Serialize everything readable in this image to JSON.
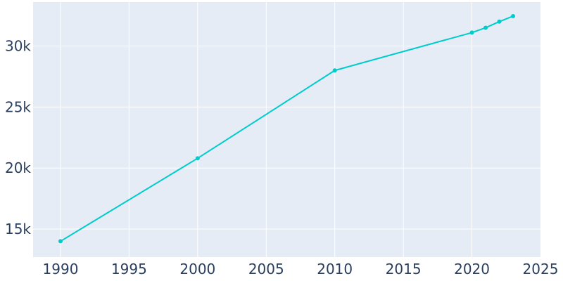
{
  "chart_data": {
    "type": "line",
    "x": [
      1990,
      2000,
      2010,
      2020,
      2021,
      2022,
      2023
    ],
    "series": [
      {
        "values": [
          14000,
          20800,
          28000,
          31100,
          31500,
          32000,
          32450
        ]
      }
    ],
    "xlim": [
      1988,
      2025
    ],
    "ylim": [
      12700,
      33600
    ],
    "x_ticks": [
      1990,
      1995,
      2000,
      2005,
      2010,
      2015,
      2020,
      2025
    ],
    "y_ticks": [
      15000,
      20000,
      25000,
      30000
    ],
    "x_tick_labels": [
      "1990",
      "1995",
      "2000",
      "2005",
      "2010",
      "2015",
      "2020",
      "2025"
    ],
    "y_tick_labels": [
      "15k",
      "20k",
      "25k",
      "30k"
    ],
    "grid": true,
    "colors": {
      "line": "#00cccc",
      "plot_bg": "#e5ecf6",
      "grid": "#ffffff",
      "text": "#2a3f5f"
    }
  }
}
